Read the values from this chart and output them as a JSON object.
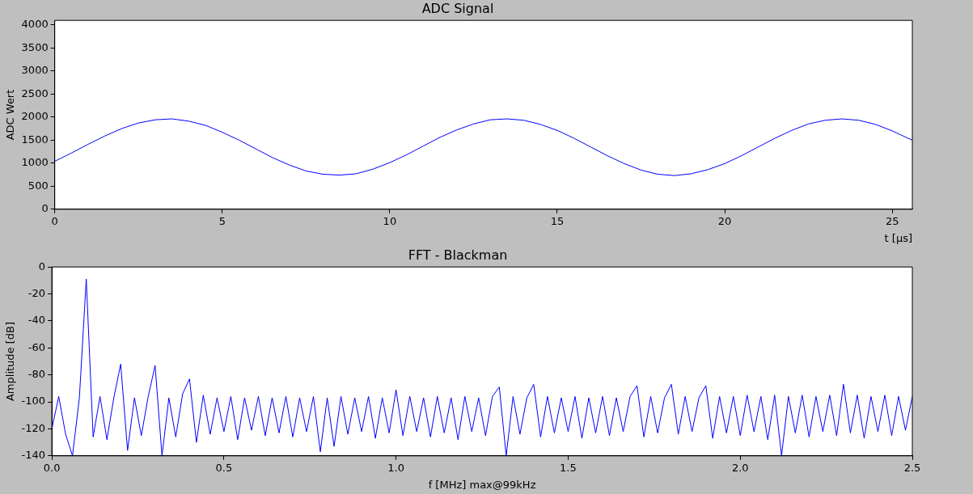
{
  "chart_data": [
    {
      "type": "line",
      "title": "ADC Signal",
      "xlabel": "t [μs]",
      "ylabel": "ADC Wert",
      "xlim": [
        0,
        25.6
      ],
      "ylim": [
        0,
        4096
      ],
      "xticks": [
        0,
        5,
        10,
        15,
        20,
        25
      ],
      "yticks": [
        0,
        500,
        1000,
        1500,
        2000,
        2500,
        3000,
        3500,
        4000
      ],
      "grid": false,
      "legend": false,
      "marker": "none",
      "x": [
        0,
        0.5,
        1,
        1.5,
        2,
        2.5,
        3,
        3.5,
        4,
        4.5,
        5,
        5.5,
        6,
        6.5,
        7,
        7.5,
        8,
        8.5,
        9,
        9.5,
        10,
        10.5,
        11,
        11.5,
        12,
        12.5,
        13,
        13.5,
        14,
        14.5,
        15,
        15.5,
        16,
        16.5,
        17,
        17.5,
        18,
        18.5,
        19,
        19.5,
        20,
        20.5,
        21,
        21.5,
        22,
        22.5,
        23,
        23.5,
        24,
        24.5,
        25,
        25.5,
        25.6
      ],
      "series": [
        {
          "color": "#0000ff",
          "values": [
            1040,
            1220,
            1410,
            1590,
            1750,
            1870,
            1940,
            1960,
            1910,
            1820,
            1670,
            1500,
            1310,
            1120,
            960,
            830,
            760,
            740,
            770,
            870,
            1010,
            1180,
            1370,
            1560,
            1720,
            1850,
            1940,
            1960,
            1930,
            1840,
            1710,
            1540,
            1350,
            1160,
            990,
            850,
            760,
            730,
            770,
            860,
            990,
            1160,
            1350,
            1540,
            1710,
            1850,
            1930,
            1960,
            1930,
            1840,
            1700,
            1530,
            1500
          ]
        }
      ]
    },
    {
      "type": "line",
      "title": "FFT - Blackman",
      "xlabel": "f [MHz] max@99kHz",
      "ylabel": "Amplitude [dB]",
      "xlim": [
        0,
        2.5
      ],
      "ylim": [
        -140,
        0
      ],
      "xticks": [
        {
          "value": 0,
          "label": "0.0"
        },
        {
          "value": 0.5,
          "label": "0.5"
        },
        {
          "value": 1,
          "label": "1.0"
        },
        {
          "value": 1.5,
          "label": "1.5"
        },
        {
          "value": 2,
          "label": "2.0"
        },
        {
          "value": 2.5,
          "label": "2.5"
        }
      ],
      "yticks": [
        -140,
        -120,
        -100,
        -80,
        -60,
        -40,
        -20,
        0
      ],
      "grid": false,
      "legend": false,
      "marker": "none",
      "x": [
        0,
        0.02,
        0.04,
        0.06,
        0.08,
        0.1,
        0.12,
        0.14,
        0.16,
        0.18,
        0.2,
        0.22,
        0.24,
        0.26,
        0.28,
        0.3,
        0.32,
        0.34,
        0.36,
        0.38,
        0.4,
        0.42,
        0.44,
        0.46,
        0.48,
        0.5,
        0.52,
        0.54,
        0.56,
        0.58,
        0.6,
        0.62,
        0.64,
        0.66,
        0.68,
        0.7,
        0.72,
        0.74,
        0.76,
        0.78,
        0.8,
        0.82,
        0.84,
        0.86,
        0.88,
        0.9,
        0.92,
        0.94,
        0.96,
        0.98,
        1,
        1.02,
        1.04,
        1.06,
        1.08,
        1.1,
        1.12,
        1.14,
        1.16,
        1.18,
        1.2,
        1.22,
        1.24,
        1.26,
        1.28,
        1.3,
        1.32,
        1.34,
        1.36,
        1.38,
        1.4,
        1.42,
        1.44,
        1.46,
        1.48,
        1.5,
        1.52,
        1.54,
        1.56,
        1.58,
        1.6,
        1.62,
        1.64,
        1.66,
        1.68,
        1.7,
        1.72,
        1.74,
        1.76,
        1.78,
        1.8,
        1.82,
        1.84,
        1.86,
        1.88,
        1.9,
        1.92,
        1.94,
        1.96,
        1.98,
        2,
        2.02,
        2.04,
        2.06,
        2.08,
        2.1,
        2.12,
        2.14,
        2.16,
        2.18,
        2.2,
        2.22,
        2.24,
        2.26,
        2.28,
        2.3,
        2.32,
        2.34,
        2.36,
        2.38,
        2.4,
        2.42,
        2.44,
        2.46,
        2.48,
        2.5
      ],
      "series": [
        {
          "color": "#0000ff",
          "values": [
            -120,
            -96,
            -124,
            -140,
            -97,
            -9,
            -126,
            -96,
            -128,
            -97,
            -72,
            -136,
            -97,
            -125,
            -96,
            -73,
            -140,
            -97,
            -126,
            -94,
            -83,
            -130,
            -95,
            -124,
            -97,
            -122,
            -96,
            -128,
            -97,
            -121,
            -96,
            -125,
            -97,
            -123,
            -96,
            -126,
            -97,
            -122,
            -96,
            -137,
            -97,
            -133,
            -96,
            -124,
            -97,
            -122,
            -96,
            -127,
            -97,
            -123,
            -91,
            -125,
            -96,
            -122,
            -97,
            -126,
            -96,
            -123,
            -97,
            -128,
            -96,
            -122,
            -97,
            -125,
            -96,
            -89,
            -140,
            -96,
            -124,
            -97,
            -87,
            -126,
            -96,
            -123,
            -97,
            -122,
            -96,
            -127,
            -97,
            -123,
            -96,
            -125,
            -97,
            -122,
            -96,
            -88,
            -126,
            -96,
            -123,
            -97,
            -87,
            -124,
            -96,
            -122,
            -97,
            -88,
            -127,
            -96,
            -123,
            -96,
            -125,
            -95,
            -122,
            -96,
            -128,
            -95,
            -140,
            -96,
            -123,
            -95,
            -126,
            -96,
            -122,
            -95,
            -125,
            -87,
            -123,
            -95,
            -127,
            -96,
            -122,
            -95,
            -125,
            -96,
            -121,
            -96
          ]
        }
      ]
    }
  ]
}
